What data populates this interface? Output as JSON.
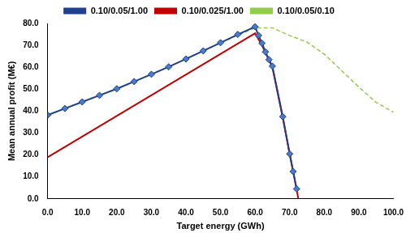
{
  "chart_data": {
    "type": "line",
    "x_label": "Target energy (GWh)",
    "y_label": "Mean annual profit (M€)",
    "xlim": [
      0,
      100
    ],
    "xticks": [
      {
        "value": 0,
        "label": "0.0"
      },
      {
        "value": 10,
        "label": "10.0"
      },
      {
        "value": 20,
        "label": "20.0"
      },
      {
        "value": 30,
        "label": "30.0"
      },
      {
        "value": 40,
        "label": "40.0"
      },
      {
        "value": 50,
        "label": "50.0"
      },
      {
        "value": 60,
        "label": "60.0"
      },
      {
        "value": 70,
        "label": "70.0"
      },
      {
        "value": 80,
        "label": "80.0"
      },
      {
        "value": 90,
        "label": "90.0"
      },
      {
        "value": 100,
        "label": "100.0"
      }
    ],
    "ylim": [
      0,
      80
    ],
    "yticks": [
      {
        "value": 0,
        "label": "0.0"
      },
      {
        "value": 10,
        "label": "10.0"
      },
      {
        "value": 20,
        "label": "20.0"
      },
      {
        "value": 30,
        "label": "30.0"
      },
      {
        "value": 40,
        "label": "40.0"
      },
      {
        "value": 50,
        "label": "50.0"
      },
      {
        "value": 60,
        "label": "60.0"
      },
      {
        "value": 70,
        "label": "70.0"
      },
      {
        "value": 80,
        "label": "80.0"
      }
    ],
    "grid": false,
    "legend": "top",
    "series": [
      {
        "name": "0.10/0.05/1.00",
        "color": "#1f3f8f",
        "marker": "diamond",
        "line_style": "solid",
        "x": [
          0,
          5,
          10,
          15,
          20,
          25,
          30,
          35,
          40,
          45,
          50,
          55,
          60,
          61,
          62,
          63,
          64,
          65,
          68,
          70,
          71,
          72
        ],
        "values": [
          38.2,
          41.2,
          44.2,
          47.2,
          50.2,
          53.5,
          56.8,
          60.2,
          63.8,
          67.5,
          71.2,
          75.0,
          78.5,
          74.5,
          71.0,
          67.0,
          63.5,
          60.5,
          37.5,
          20.5,
          12.5,
          4.5
        ]
      },
      {
        "name": "0.10/0.025/1.00",
        "color": "#c00000",
        "marker": "none",
        "line_style": "solid",
        "x": [
          0,
          60,
          62,
          65,
          68,
          70,
          72,
          72.5
        ],
        "values": [
          19.0,
          75.5,
          70.0,
          60.0,
          37.0,
          20.5,
          4.5,
          0.0
        ]
      },
      {
        "name": "0.10/0.05/0.10",
        "color": "#8fce4a",
        "marker": "none",
        "line_style": "dashed",
        "x": [
          0,
          10,
          20,
          30,
          40,
          50,
          60,
          65,
          70,
          75,
          80,
          85,
          90,
          95,
          100
        ],
        "values": [
          38.2,
          44.2,
          50.2,
          56.8,
          63.8,
          71.2,
          78.0,
          78.0,
          74.5,
          71.5,
          66.0,
          58.5,
          51.0,
          44.0,
          39.5
        ]
      }
    ]
  }
}
